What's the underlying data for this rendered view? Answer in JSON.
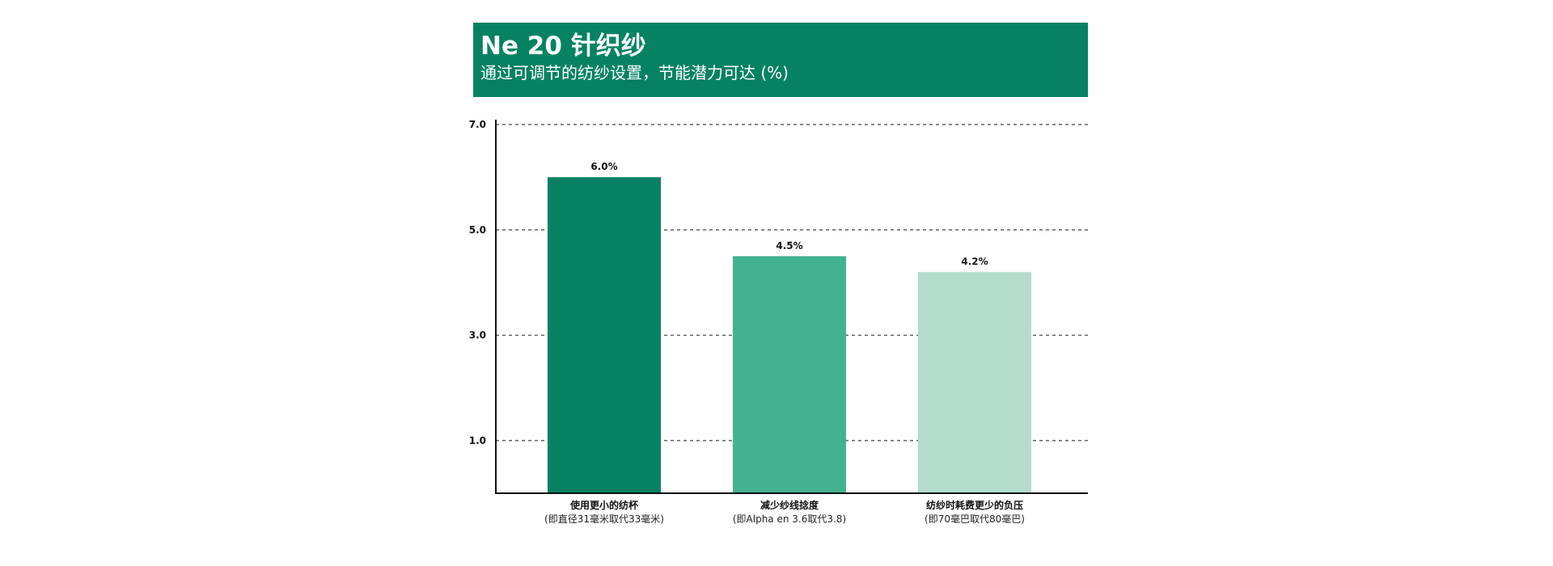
{
  "header": {
    "title": "Ne 20 针织纱",
    "subtitle": "通过可调节的纺纱设置，节能潜力可达 (%)"
  },
  "colors": {
    "header_bg": "#068263",
    "gridline": "#444444",
    "axis": "#111111"
  },
  "chart_data": {
    "type": "bar",
    "title": "Ne 20 针织纱",
    "subtitle": "通过可调节的纺纱设置，节能潜力可达 (%)",
    "xlabel": "",
    "ylabel": "",
    "ylim": [
      0,
      7.0
    ],
    "yticks": [
      1.0,
      3.0,
      5.0,
      7.0
    ],
    "ytick_labels": [
      "1.0",
      "3.0",
      "5.0",
      "7.0"
    ],
    "grid": true,
    "categories": [
      {
        "line1": "使用更小的纺杯",
        "line2": "(即直径31毫米取代33毫米)"
      },
      {
        "line1": "减少纱线捻度",
        "line2": "(即Alpha en 3.6取代3.8)"
      },
      {
        "line1": "纺纱时耗费更少的负压",
        "line2": "(即70毫巴取代80毫巴)"
      }
    ],
    "values": [
      6.0,
      4.5,
      4.2
    ],
    "value_labels": [
      "6.0%",
      "4.5%",
      "4.2%"
    ],
    "bar_colors": [
      "#068263",
      "#43b38f",
      "#b3dccd"
    ]
  }
}
